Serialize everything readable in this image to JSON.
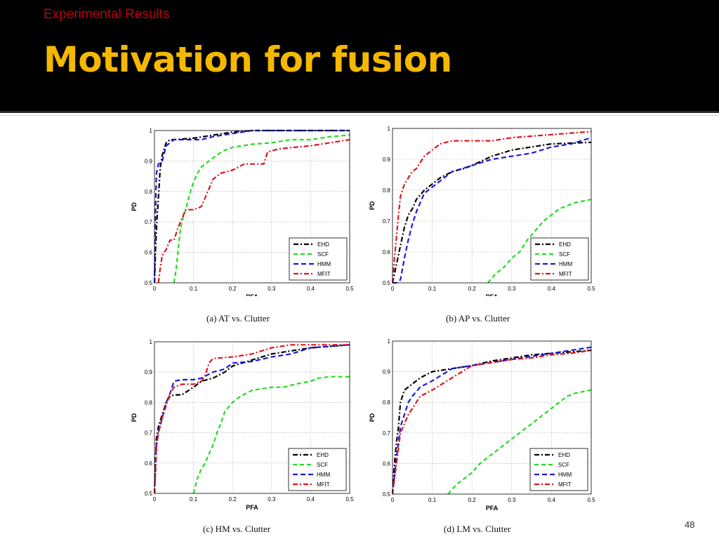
{
  "slide": {
    "section": "Experimental Results",
    "title": "Motivation for fusion",
    "page_number": "48"
  },
  "colors": {
    "EHD": "#000000",
    "SCF": "#22dd22",
    "HMM": "#1a1adf",
    "MFIT": "#e0141e",
    "title": "#f5b800",
    "section": "#c0000b"
  },
  "chart_data": [
    {
      "type": "line",
      "caption": "(a)  AT vs. Clutter",
      "xlabel": "PFA",
      "ylabel": "PD",
      "xlim": [
        0,
        0.5
      ],
      "ylim": [
        0.5,
        1
      ],
      "xticks": [
        "0",
        "0.1",
        "0.2",
        "0.3",
        "0.4",
        "0.5"
      ],
      "yticks": [
        "0.5",
        "0.6",
        "0.7",
        "0.8",
        "0.9",
        "1"
      ],
      "grid": true,
      "legend_position": "bottom-right",
      "series": [
        {
          "name": "EHD",
          "x": [
            0,
            0.003,
            0.006,
            0.01,
            0.015,
            0.02,
            0.03,
            0.04,
            0.05,
            0.1,
            0.15,
            0.2,
            0.25,
            0.5
          ],
          "y": [
            0.5,
            0.62,
            0.7,
            0.78,
            0.88,
            0.92,
            0.96,
            0.97,
            0.97,
            0.975,
            0.985,
            0.995,
            1.0,
            1.0
          ]
        },
        {
          "name": "SCF",
          "x": [
            0.05,
            0.055,
            0.06,
            0.065,
            0.07,
            0.08,
            0.09,
            0.1,
            0.11,
            0.12,
            0.14,
            0.16,
            0.18,
            0.2,
            0.25,
            0.3,
            0.35,
            0.4,
            0.45,
            0.5
          ],
          "y": [
            0.5,
            0.54,
            0.6,
            0.66,
            0.7,
            0.74,
            0.79,
            0.83,
            0.86,
            0.88,
            0.9,
            0.92,
            0.935,
            0.945,
            0.955,
            0.96,
            0.97,
            0.97,
            0.98,
            0.985
          ]
        },
        {
          "name": "HMM",
          "x": [
            0,
            0.002,
            0.005,
            0.01,
            0.02,
            0.03,
            0.05,
            0.08,
            0.12,
            0.15,
            0.2,
            0.25,
            0.5
          ],
          "y": [
            0.5,
            0.7,
            0.86,
            0.89,
            0.9,
            0.95,
            0.97,
            0.97,
            0.97,
            0.98,
            0.99,
            1.0,
            1.0
          ]
        },
        {
          "name": "MFIT",
          "x": [
            0.01,
            0.015,
            0.02,
            0.03,
            0.04,
            0.05,
            0.06,
            0.07,
            0.08,
            0.09,
            0.1,
            0.12,
            0.13,
            0.14,
            0.15,
            0.17,
            0.2,
            0.23,
            0.25,
            0.28,
            0.29,
            0.32,
            0.4,
            0.45,
            0.5
          ],
          "y": [
            0.5,
            0.55,
            0.59,
            0.61,
            0.64,
            0.64,
            0.68,
            0.71,
            0.74,
            0.74,
            0.74,
            0.75,
            0.78,
            0.81,
            0.84,
            0.86,
            0.87,
            0.89,
            0.89,
            0.89,
            0.93,
            0.94,
            0.95,
            0.96,
            0.97
          ]
        }
      ]
    },
    {
      "type": "line",
      "caption": "(b)  AP vs. Clutter",
      "xlabel": "PFA",
      "ylabel": "PD",
      "xlim": [
        0,
        0.5
      ],
      "ylim": [
        0.5,
        1
      ],
      "xticks": [
        "0",
        "0.1",
        "0.2",
        "0.3",
        "0.4",
        "0.5"
      ],
      "yticks": [
        "0.5",
        "0.6",
        "0.7",
        "0.8",
        "0.9",
        "1"
      ],
      "grid": true,
      "legend_position": "bottom-right",
      "series": [
        {
          "name": "EHD",
          "x": [
            0,
            0.01,
            0.02,
            0.03,
            0.04,
            0.05,
            0.06,
            0.08,
            0.1,
            0.12,
            0.15,
            0.18,
            0.2,
            0.25,
            0.3,
            0.35,
            0.4,
            0.5
          ],
          "y": [
            0.5,
            0.56,
            0.62,
            0.68,
            0.72,
            0.74,
            0.77,
            0.8,
            0.82,
            0.84,
            0.86,
            0.87,
            0.88,
            0.91,
            0.93,
            0.94,
            0.95,
            0.955
          ]
        },
        {
          "name": "SCF",
          "x": [
            0.24,
            0.26,
            0.28,
            0.3,
            0.32,
            0.34,
            0.36,
            0.38,
            0.4,
            0.42,
            0.44,
            0.46,
            0.5
          ],
          "y": [
            0.5,
            0.53,
            0.55,
            0.58,
            0.6,
            0.64,
            0.67,
            0.7,
            0.72,
            0.74,
            0.75,
            0.76,
            0.77
          ]
        },
        {
          "name": "HMM",
          "x": [
            0,
            0.01,
            0.02,
            0.03,
            0.04,
            0.05,
            0.06,
            0.07,
            0.08,
            0.1,
            0.12,
            0.15,
            0.2,
            0.25,
            0.3,
            0.35,
            0.4,
            0.45,
            0.5
          ],
          "y": [
            0.5,
            0.5,
            0.51,
            0.58,
            0.64,
            0.69,
            0.73,
            0.76,
            0.79,
            0.81,
            0.83,
            0.86,
            0.88,
            0.9,
            0.91,
            0.92,
            0.94,
            0.95,
            0.97
          ]
        },
        {
          "name": "MFIT",
          "x": [
            0,
            0.005,
            0.01,
            0.015,
            0.02,
            0.03,
            0.04,
            0.05,
            0.06,
            0.07,
            0.08,
            0.1,
            0.12,
            0.15,
            0.2,
            0.25,
            0.3,
            0.35,
            0.4,
            0.45,
            0.5
          ],
          "y": [
            0.5,
            0.58,
            0.65,
            0.72,
            0.78,
            0.82,
            0.84,
            0.86,
            0.87,
            0.89,
            0.91,
            0.93,
            0.95,
            0.96,
            0.96,
            0.96,
            0.97,
            0.975,
            0.98,
            0.985,
            0.99
          ]
        }
      ]
    },
    {
      "type": "line",
      "caption": "(c)  HM vs. Clutter",
      "xlabel": "PFA",
      "ylabel": "PD",
      "xlim": [
        0,
        0.5
      ],
      "ylim": [
        0.5,
        1
      ],
      "xticks": [
        "0",
        "0.1",
        "0.2",
        "0.3",
        "0.4",
        "0.5"
      ],
      "yticks": [
        "0.5",
        "0.6",
        "0.7",
        "0.8",
        "0.9",
        "1"
      ],
      "grid": true,
      "legend_position": "bottom-right",
      "series": [
        {
          "name": "EHD",
          "x": [
            0,
            0.003,
            0.005,
            0.01,
            0.02,
            0.03,
            0.04,
            0.05,
            0.07,
            0.1,
            0.12,
            0.15,
            0.18,
            0.2,
            0.25,
            0.3,
            0.4,
            0.5
          ],
          "y": [
            0.5,
            0.62,
            0.68,
            0.72,
            0.76,
            0.8,
            0.82,
            0.825,
            0.825,
            0.85,
            0.87,
            0.88,
            0.9,
            0.92,
            0.94,
            0.96,
            0.98,
            0.99
          ]
        },
        {
          "name": "SCF",
          "x": [
            0.1,
            0.11,
            0.12,
            0.13,
            0.14,
            0.15,
            0.16,
            0.17,
            0.18,
            0.2,
            0.22,
            0.25,
            0.3,
            0.33,
            0.36,
            0.4,
            0.42,
            0.45,
            0.5
          ],
          "y": [
            0.5,
            0.55,
            0.58,
            0.6,
            0.63,
            0.66,
            0.7,
            0.73,
            0.77,
            0.8,
            0.82,
            0.84,
            0.85,
            0.85,
            0.86,
            0.87,
            0.88,
            0.885,
            0.885
          ]
        },
        {
          "name": "HMM",
          "x": [
            0,
            0.003,
            0.005,
            0.01,
            0.02,
            0.03,
            0.04,
            0.05,
            0.07,
            0.1,
            0.12,
            0.15,
            0.18,
            0.2,
            0.25,
            0.3,
            0.35,
            0.4,
            0.5
          ],
          "y": [
            0.5,
            0.62,
            0.66,
            0.7,
            0.75,
            0.8,
            0.83,
            0.87,
            0.875,
            0.875,
            0.88,
            0.9,
            0.91,
            0.93,
            0.935,
            0.95,
            0.96,
            0.98,
            0.99
          ]
        },
        {
          "name": "MFIT",
          "x": [
            0,
            0.003,
            0.005,
            0.01,
            0.02,
            0.03,
            0.04,
            0.05,
            0.07,
            0.1,
            0.12,
            0.13,
            0.14,
            0.15,
            0.2,
            0.25,
            0.3,
            0.35,
            0.4,
            0.5
          ],
          "y": [
            0.5,
            0.58,
            0.65,
            0.7,
            0.75,
            0.79,
            0.83,
            0.85,
            0.86,
            0.86,
            0.87,
            0.89,
            0.93,
            0.945,
            0.95,
            0.96,
            0.98,
            0.99,
            0.99,
            0.99
          ]
        }
      ]
    },
    {
      "type": "line",
      "caption": "(d)  LM vs. Clutter",
      "xlabel": "PFA",
      "ylabel": "PD",
      "xlim": [
        0,
        0.5
      ],
      "ylim": [
        0.5,
        1
      ],
      "xticks": [
        "0",
        "0.1",
        "0.2",
        "0.3",
        "0.4",
        "0.5"
      ],
      "yticks": [
        "0.5",
        "0.6",
        "0.7",
        "0.8",
        "0.9",
        "1"
      ],
      "grid": true,
      "legend_position": "bottom-right",
      "series": [
        {
          "name": "EHD",
          "x": [
            0,
            0.005,
            0.01,
            0.015,
            0.02,
            0.03,
            0.05,
            0.07,
            0.1,
            0.15,
            0.2,
            0.25,
            0.3,
            0.35,
            0.4,
            0.45,
            0.5
          ],
          "y": [
            0.5,
            0.6,
            0.67,
            0.72,
            0.8,
            0.84,
            0.86,
            0.88,
            0.9,
            0.91,
            0.92,
            0.935,
            0.945,
            0.955,
            0.96,
            0.965,
            0.97
          ]
        },
        {
          "name": "SCF",
          "x": [
            0.14,
            0.16,
            0.18,
            0.2,
            0.22,
            0.24,
            0.26,
            0.28,
            0.3,
            0.32,
            0.34,
            0.36,
            0.38,
            0.4,
            0.42,
            0.44,
            0.46,
            0.48,
            0.5
          ],
          "y": [
            0.5,
            0.53,
            0.55,
            0.57,
            0.6,
            0.62,
            0.64,
            0.66,
            0.68,
            0.7,
            0.72,
            0.74,
            0.76,
            0.78,
            0.8,
            0.82,
            0.83,
            0.835,
            0.84
          ]
        },
        {
          "name": "HMM",
          "x": [
            0,
            0.005,
            0.01,
            0.015,
            0.02,
            0.03,
            0.04,
            0.05,
            0.07,
            0.1,
            0.15,
            0.2,
            0.25,
            0.3,
            0.35,
            0.4,
            0.45,
            0.5
          ],
          "y": [
            0.5,
            0.56,
            0.62,
            0.67,
            0.72,
            0.76,
            0.8,
            0.82,
            0.85,
            0.87,
            0.91,
            0.92,
            0.93,
            0.94,
            0.95,
            0.96,
            0.97,
            0.98
          ]
        },
        {
          "name": "MFIT",
          "x": [
            0,
            0.005,
            0.01,
            0.015,
            0.02,
            0.03,
            0.04,
            0.05,
            0.07,
            0.1,
            0.15,
            0.2,
            0.25,
            0.3,
            0.35,
            0.4,
            0.45,
            0.5
          ],
          "y": [
            0.5,
            0.55,
            0.6,
            0.65,
            0.7,
            0.73,
            0.76,
            0.78,
            0.82,
            0.84,
            0.88,
            0.92,
            0.93,
            0.94,
            0.945,
            0.955,
            0.96,
            0.97
          ]
        }
      ]
    }
  ]
}
